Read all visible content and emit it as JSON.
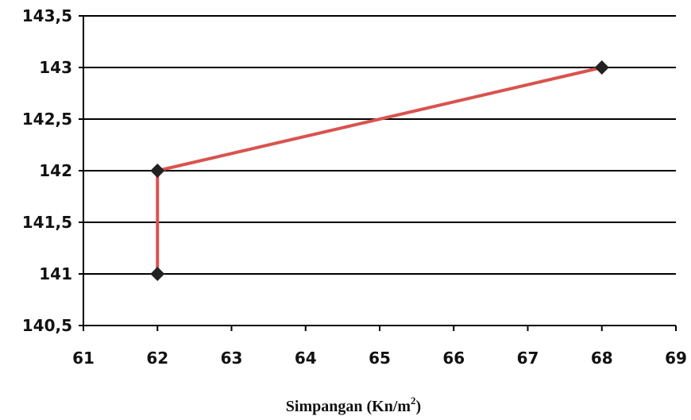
{
  "chart_data": {
    "type": "line",
    "x": [
      62,
      62,
      68
    ],
    "series": [
      {
        "values": [
          141,
          142,
          143
        ]
      }
    ],
    "xlim": [
      61,
      69
    ],
    "ylim": [
      140.5,
      143.5
    ],
    "xticks": [
      "61",
      "62",
      "63",
      "64",
      "65",
      "66",
      "67",
      "68",
      "69"
    ],
    "yticks": [
      "140,5",
      "141",
      "141,5",
      "142",
      "142,5",
      "143",
      "143,5"
    ],
    "xlabel": "Simpangan  (Kn/m",
    "xlabel_sup": "2",
    "xlabel_suffix": ")",
    "grid": "horizontal",
    "colors": {
      "line": "#d9534f",
      "marker": "#222222",
      "grid": "#000000"
    }
  }
}
